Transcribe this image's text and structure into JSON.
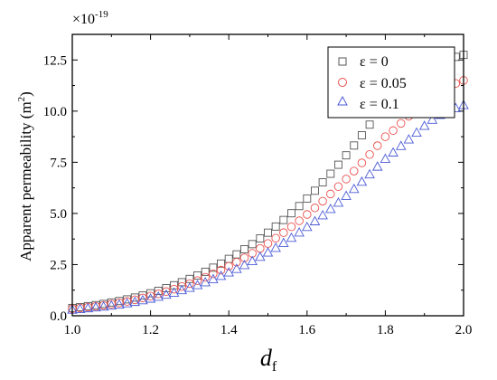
{
  "chart_data": {
    "type": "scatter",
    "xlabel_main": "d",
    "xlabel_sub": "f",
    "ylabel_main": "Apparent permeability (m",
    "ylabel_sup": "2",
    "ylabel_close": ")",
    "multiplier_base": "×10",
    "multiplier_exp": "-19",
    "xlim": [
      1.0,
      2.0
    ],
    "ylim": [
      0.0,
      13.75
    ],
    "x_ticks": [
      "1.0",
      "1.2",
      "1.4",
      "1.6",
      "1.8",
      "2.0"
    ],
    "y_ticks": [
      "0.0",
      "2.5",
      "5.0",
      "7.5",
      "10.0",
      "12.5"
    ],
    "grid": false,
    "legend_position": "top-right",
    "x": [
      1.0,
      1.02,
      1.04,
      1.06,
      1.08,
      1.1,
      1.12,
      1.14,
      1.16,
      1.18,
      1.2,
      1.22,
      1.24,
      1.26,
      1.28,
      1.3,
      1.32,
      1.34,
      1.36,
      1.38,
      1.4,
      1.42,
      1.44,
      1.46,
      1.48,
      1.5,
      1.52,
      1.54,
      1.56,
      1.58,
      1.6,
      1.62,
      1.64,
      1.66,
      1.68,
      1.7,
      1.72,
      1.74,
      1.76,
      1.78,
      1.8,
      1.82,
      1.84,
      1.86,
      1.88,
      1.9,
      1.92,
      1.94,
      1.96,
      1.98,
      2.0
    ],
    "series": [
      {
        "name": "ε = 0",
        "marker": "square",
        "color": "#555555",
        "values": [
          0.38,
          0.42,
          0.47,
          0.52,
          0.58,
          0.65,
          0.72,
          0.8,
          0.89,
          0.99,
          1.1,
          1.22,
          1.35,
          1.49,
          1.64,
          1.8,
          1.97,
          2.15,
          2.35,
          2.55,
          2.78,
          3.0,
          3.25,
          3.5,
          3.78,
          4.06,
          4.36,
          4.68,
          5.01,
          5.36,
          5.73,
          6.11,
          6.52,
          6.94,
          7.38,
          7.84,
          8.32,
          8.82,
          9.34,
          9.88,
          10.44,
          10.56,
          10.85,
          11.15,
          11.45,
          11.76,
          12.05,
          12.3,
          12.5,
          12.65,
          12.75
        ]
      },
      {
        "name": "ε = 0.05",
        "marker": "circle",
        "color": "#e8514d",
        "values": [
          0.34,
          0.38,
          0.42,
          0.46,
          0.51,
          0.57,
          0.63,
          0.7,
          0.78,
          0.87,
          0.96,
          1.07,
          1.18,
          1.3,
          1.43,
          1.57,
          1.72,
          1.88,
          2.05,
          2.23,
          2.42,
          2.62,
          2.83,
          3.05,
          3.29,
          3.53,
          3.79,
          4.06,
          4.35,
          4.64,
          4.95,
          5.27,
          5.6,
          5.95,
          6.31,
          6.68,
          7.07,
          7.47,
          7.88,
          8.31,
          8.75,
          9.05,
          9.4,
          9.75,
          10.1,
          10.45,
          10.75,
          11.0,
          11.2,
          11.35,
          11.5
        ]
      },
      {
        "name": "ε = 0.1",
        "marker": "triangle",
        "color": "#4b5bd6",
        "values": [
          0.3,
          0.33,
          0.37,
          0.41,
          0.45,
          0.5,
          0.55,
          0.61,
          0.68,
          0.76,
          0.84,
          0.93,
          1.03,
          1.13,
          1.25,
          1.37,
          1.5,
          1.64,
          1.79,
          1.95,
          2.12,
          2.29,
          2.48,
          2.67,
          2.88,
          3.09,
          3.32,
          3.56,
          3.81,
          4.07,
          4.34,
          4.62,
          4.91,
          5.22,
          5.53,
          5.86,
          6.2,
          6.55,
          6.91,
          7.29,
          7.67,
          7.98,
          8.3,
          8.62,
          8.95,
          9.28,
          9.58,
          9.82,
          10.0,
          10.15,
          10.3
        ]
      }
    ]
  }
}
